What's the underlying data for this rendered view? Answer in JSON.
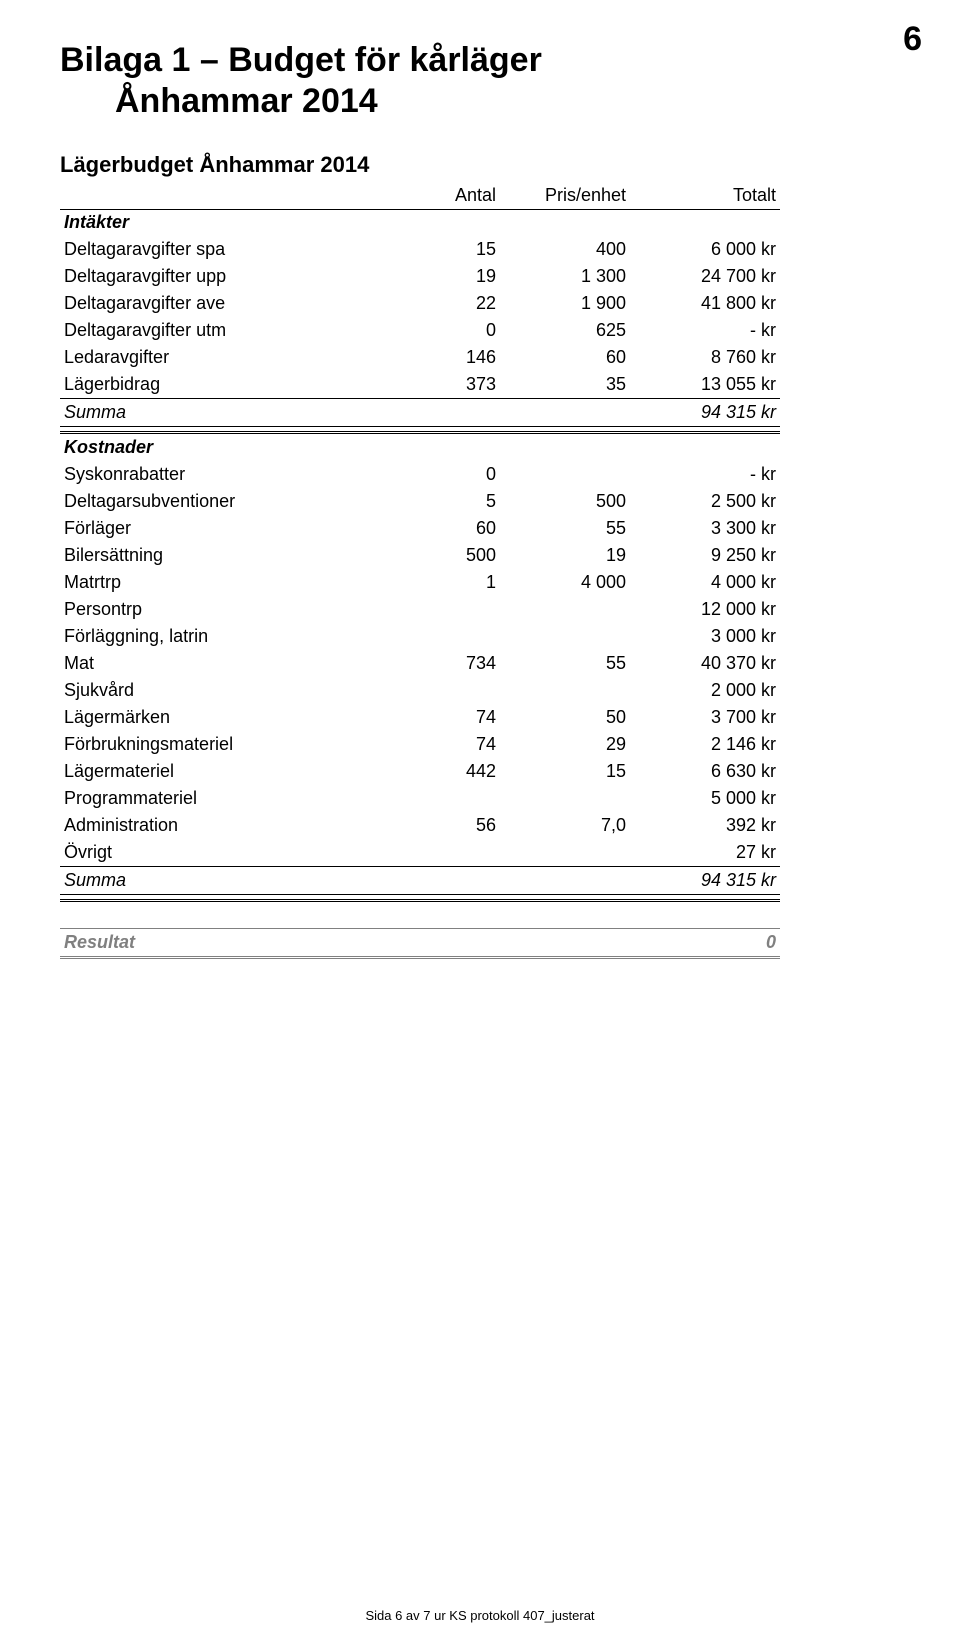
{
  "page_number": "6",
  "title_line1": "Bilaga 1 – Budget för kårläger",
  "title_line2": "Ånhammar 2014",
  "subtitle": "Lägerbudget Ånhammar 2014",
  "columns": {
    "label": "",
    "a": "Antal",
    "b": "Pris/enhet",
    "c": "Totalt"
  },
  "intakter": {
    "header": "Intäkter",
    "rows": [
      {
        "label": "Deltagaravgifter spa",
        "a": "15",
        "b": "400",
        "c": "6 000 kr"
      },
      {
        "label": "Deltagaravgifter upp",
        "a": "19",
        "b": "1 300",
        "c": "24 700 kr"
      },
      {
        "label": "Deltagaravgifter ave",
        "a": "22",
        "b": "1 900",
        "c": "41 800 kr"
      },
      {
        "label": "Deltagaravgifter utm",
        "a": "0",
        "b": "625",
        "c": "-   kr"
      },
      {
        "label": "Ledaravgifter",
        "a": "146",
        "b": "60",
        "c": "8 760 kr"
      },
      {
        "label": "Lägerbidrag",
        "a": "373",
        "b": "35",
        "c": "13 055 kr"
      }
    ],
    "summa_label": "Summa",
    "summa_value": "94 315 kr"
  },
  "kostnader": {
    "header": "Kostnader",
    "rows": [
      {
        "label": "Syskonrabatter",
        "a": "0",
        "b": "",
        "c": "-   kr"
      },
      {
        "label": "Deltagarsubventioner",
        "a": "5",
        "b": "500",
        "c": "2 500 kr"
      },
      {
        "label": "Förläger",
        "a": "60",
        "b": "55",
        "c": "3 300 kr"
      },
      {
        "label": "Bilersättning",
        "a": "500",
        "b": "19",
        "c": "9 250 kr"
      },
      {
        "label": "Matrtrp",
        "a": "1",
        "b": "4 000",
        "c": "4 000 kr"
      },
      {
        "label": "Persontrp",
        "a": "",
        "b": "",
        "c": "12 000 kr"
      },
      {
        "label": "Förläggning, latrin",
        "a": "",
        "b": "",
        "c": "3 000 kr"
      },
      {
        "label": "Mat",
        "a": "734",
        "b": "55",
        "c": "40 370 kr"
      },
      {
        "label": "Sjukvård",
        "a": "",
        "b": "",
        "c": "2 000 kr"
      },
      {
        "label": "Lägermärken",
        "a": "74",
        "b": "50",
        "c": "3 700 kr"
      },
      {
        "label": "Förbrukningsmateriel",
        "a": "74",
        "b": "29",
        "c": "2 146 kr"
      },
      {
        "label": "Lägermateriel",
        "a": "442",
        "b": "15",
        "c": "6 630 kr"
      },
      {
        "label": "Programmateriel",
        "a": "",
        "b": "",
        "c": "5 000 kr"
      },
      {
        "label": "Administration",
        "a": "56",
        "b": "7,0",
        "c": "392 kr"
      },
      {
        "label": "Övrigt",
        "a": "",
        "b": "",
        "c": "27 kr"
      }
    ],
    "summa_label": "Summa",
    "summa_value": "94 315 kr"
  },
  "result": {
    "label": "Resultat",
    "value": "0"
  },
  "footer": "Sida 6 av 7 ur KS protokoll 407_justerat"
}
